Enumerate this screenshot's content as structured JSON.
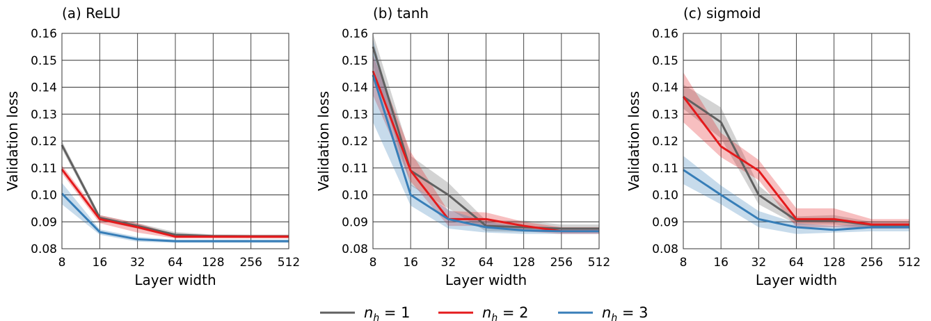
{
  "figure": {
    "legend": [
      {
        "prefix": "n",
        "sub": "h",
        "rest": " = 1",
        "color": "#606060"
      },
      {
        "prefix": "n",
        "sub": "h",
        "rest": " = 2",
        "color": "#e41a1c"
      },
      {
        "prefix": "n",
        "sub": "h",
        "rest": " = 3",
        "color": "#377eb8"
      }
    ],
    "legend_placement": "bottom-center"
  },
  "chart_data": [
    {
      "type": "line",
      "title": "(a) ReLU",
      "xlabel": "Layer width",
      "ylabel": "Validation loss",
      "x": [
        "8",
        "16",
        "32",
        "64",
        "128",
        "256",
        "512"
      ],
      "x_scale": "log2",
      "ylim": [
        0.08,
        0.16
      ],
      "yticks": [
        "0.08",
        "0.09",
        "0.10",
        "0.11",
        "0.12",
        "0.13",
        "0.14",
        "0.15",
        "0.16"
      ],
      "grid": true,
      "series": [
        {
          "name": "n_h = 1",
          "color": "#606060",
          "values": [
            0.1185,
            0.0915,
            0.0885,
            0.0852,
            0.0847,
            0.0846,
            0.0846
          ],
          "lower": [
            0.117,
            0.0905,
            0.0875,
            0.0842,
            0.0841,
            0.084,
            0.084
          ],
          "upper": [
            0.12,
            0.0925,
            0.0895,
            0.0862,
            0.0853,
            0.0852,
            0.0852
          ]
        },
        {
          "name": "n_h = 2",
          "color": "#e41a1c",
          "values": [
            0.1095,
            0.091,
            0.088,
            0.0845,
            0.0845,
            0.0845,
            0.0845
          ],
          "lower": [
            0.108,
            0.0895,
            0.086,
            0.0838,
            0.0838,
            0.0838,
            0.0838
          ],
          "upper": [
            0.111,
            0.0925,
            0.0895,
            0.0852,
            0.0852,
            0.0852,
            0.0852
          ]
        },
        {
          "name": "n_h = 3",
          "color": "#377eb8",
          "values": [
            0.1005,
            0.0862,
            0.0835,
            0.0828,
            0.0828,
            0.0828,
            0.0828
          ],
          "lower": [
            0.0965,
            0.0852,
            0.0826,
            0.0822,
            0.0822,
            0.0822,
            0.0822
          ],
          "upper": [
            0.1045,
            0.0872,
            0.0844,
            0.0834,
            0.0834,
            0.0834,
            0.0834
          ]
        }
      ]
    },
    {
      "type": "line",
      "title": "(b) tanh",
      "xlabel": "Layer width",
      "ylabel": "Validation loss",
      "x": [
        "8",
        "16",
        "32",
        "64",
        "128",
        "256",
        "512"
      ],
      "x_scale": "log2",
      "ylim": [
        0.08,
        0.16
      ],
      "yticks": [
        "0.08",
        "0.09",
        "0.10",
        "0.11",
        "0.12",
        "0.13",
        "0.14",
        "0.15",
        "0.16"
      ],
      "grid": true,
      "series": [
        {
          "name": "n_h = 1",
          "color": "#606060",
          "values": [
            0.155,
            0.109,
            0.1,
            0.0885,
            0.088,
            0.0875,
            0.0875
          ],
          "lower": [
            0.148,
            0.1035,
            0.095,
            0.0865,
            0.0863,
            0.0862,
            0.0862
          ],
          "upper": [
            0.16,
            0.1145,
            0.1045,
            0.0905,
            0.0905,
            0.089,
            0.089
          ]
        },
        {
          "name": "n_h = 2",
          "color": "#e41a1c",
          "values": [
            0.146,
            0.109,
            0.091,
            0.091,
            0.0885,
            0.0865,
            0.0865
          ],
          "lower": [
            0.137,
            0.105,
            0.0885,
            0.0885,
            0.0865,
            0.0855,
            0.0855
          ],
          "upper": [
            0.152,
            0.116,
            0.094,
            0.0935,
            0.09,
            0.088,
            0.088
          ]
        },
        {
          "name": "n_h = 3",
          "color": "#377eb8",
          "values": [
            0.1445,
            0.1,
            0.091,
            0.088,
            0.0868,
            0.0865,
            0.0865
          ],
          "lower": [
            0.127,
            0.096,
            0.0875,
            0.086,
            0.0855,
            0.0855,
            0.0855
          ],
          "upper": [
            0.158,
            0.104,
            0.0945,
            0.09,
            0.088,
            0.0875,
            0.0875
          ]
        }
      ]
    },
    {
      "type": "line",
      "title": "(c) sigmoid",
      "xlabel": "Layer width",
      "ylabel": "Validation loss",
      "x": [
        "8",
        "16",
        "32",
        "64",
        "128",
        "256",
        "512"
      ],
      "x_scale": "log2",
      "ylim": [
        0.08,
        0.16
      ],
      "yticks": [
        "0.08",
        "0.09",
        "0.10",
        "0.11",
        "0.12",
        "0.13",
        "0.14",
        "0.15",
        "0.16"
      ],
      "grid": true,
      "series": [
        {
          "name": "n_h = 1",
          "color": "#606060",
          "values": [
            0.1365,
            0.127,
            0.1,
            0.0905,
            0.0905,
            0.0888,
            0.0888
          ],
          "lower": [
            0.132,
            0.121,
            0.0965,
            0.089,
            0.089,
            0.0875,
            0.0875
          ],
          "upper": [
            0.141,
            0.1325,
            0.1035,
            0.092,
            0.0925,
            0.09,
            0.09
          ]
        },
        {
          "name": "n_h = 2",
          "color": "#e41a1c",
          "values": [
            0.1365,
            0.118,
            0.109,
            0.091,
            0.091,
            0.089,
            0.089
          ],
          "lower": [
            0.127,
            0.114,
            0.1055,
            0.088,
            0.088,
            0.0875,
            0.0875
          ],
          "upper": [
            0.1455,
            0.123,
            0.113,
            0.095,
            0.095,
            0.091,
            0.091
          ]
        },
        {
          "name": "n_h = 3",
          "color": "#377eb8",
          "values": [
            0.1093,
            0.1,
            0.091,
            0.088,
            0.087,
            0.088,
            0.088
          ],
          "lower": [
            0.104,
            0.0965,
            0.088,
            0.0855,
            0.086,
            0.0865,
            0.0865
          ],
          "upper": [
            0.1145,
            0.1035,
            0.094,
            0.0895,
            0.0885,
            0.0895,
            0.0895
          ]
        }
      ]
    }
  ]
}
